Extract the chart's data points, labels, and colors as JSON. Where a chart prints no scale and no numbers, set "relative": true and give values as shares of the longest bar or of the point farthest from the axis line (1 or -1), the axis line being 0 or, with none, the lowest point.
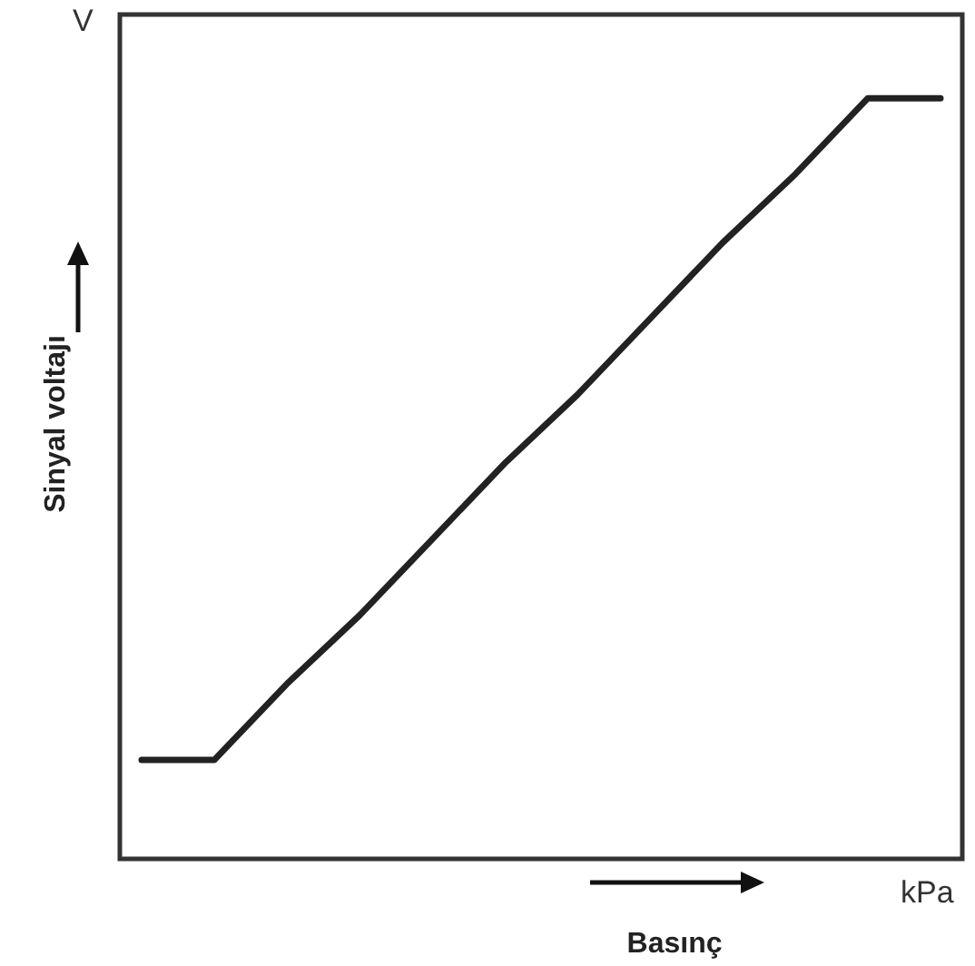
{
  "chart_data": {
    "type": "line",
    "xlabel": "Basınç",
    "ylabel": "Sinyal voltajı",
    "annotations": [
      "V",
      "kPa"
    ],
    "relative": true,
    "categories": [
      null,
      null,
      null,
      null,
      null,
      null,
      null,
      null,
      null,
      null,
      null,
      null
    ],
    "series": [
      {
        "color": "#222222",
        "values": [
          0.13,
          0.13,
          0.23,
          0.32,
          0.42,
          0.52,
          0.61,
          0.71,
          0.81,
          0.9,
          1.0,
          1.0
        ]
      }
    ],
    "grid": false,
    "marker": "none",
    "line_style": "solid"
  }
}
